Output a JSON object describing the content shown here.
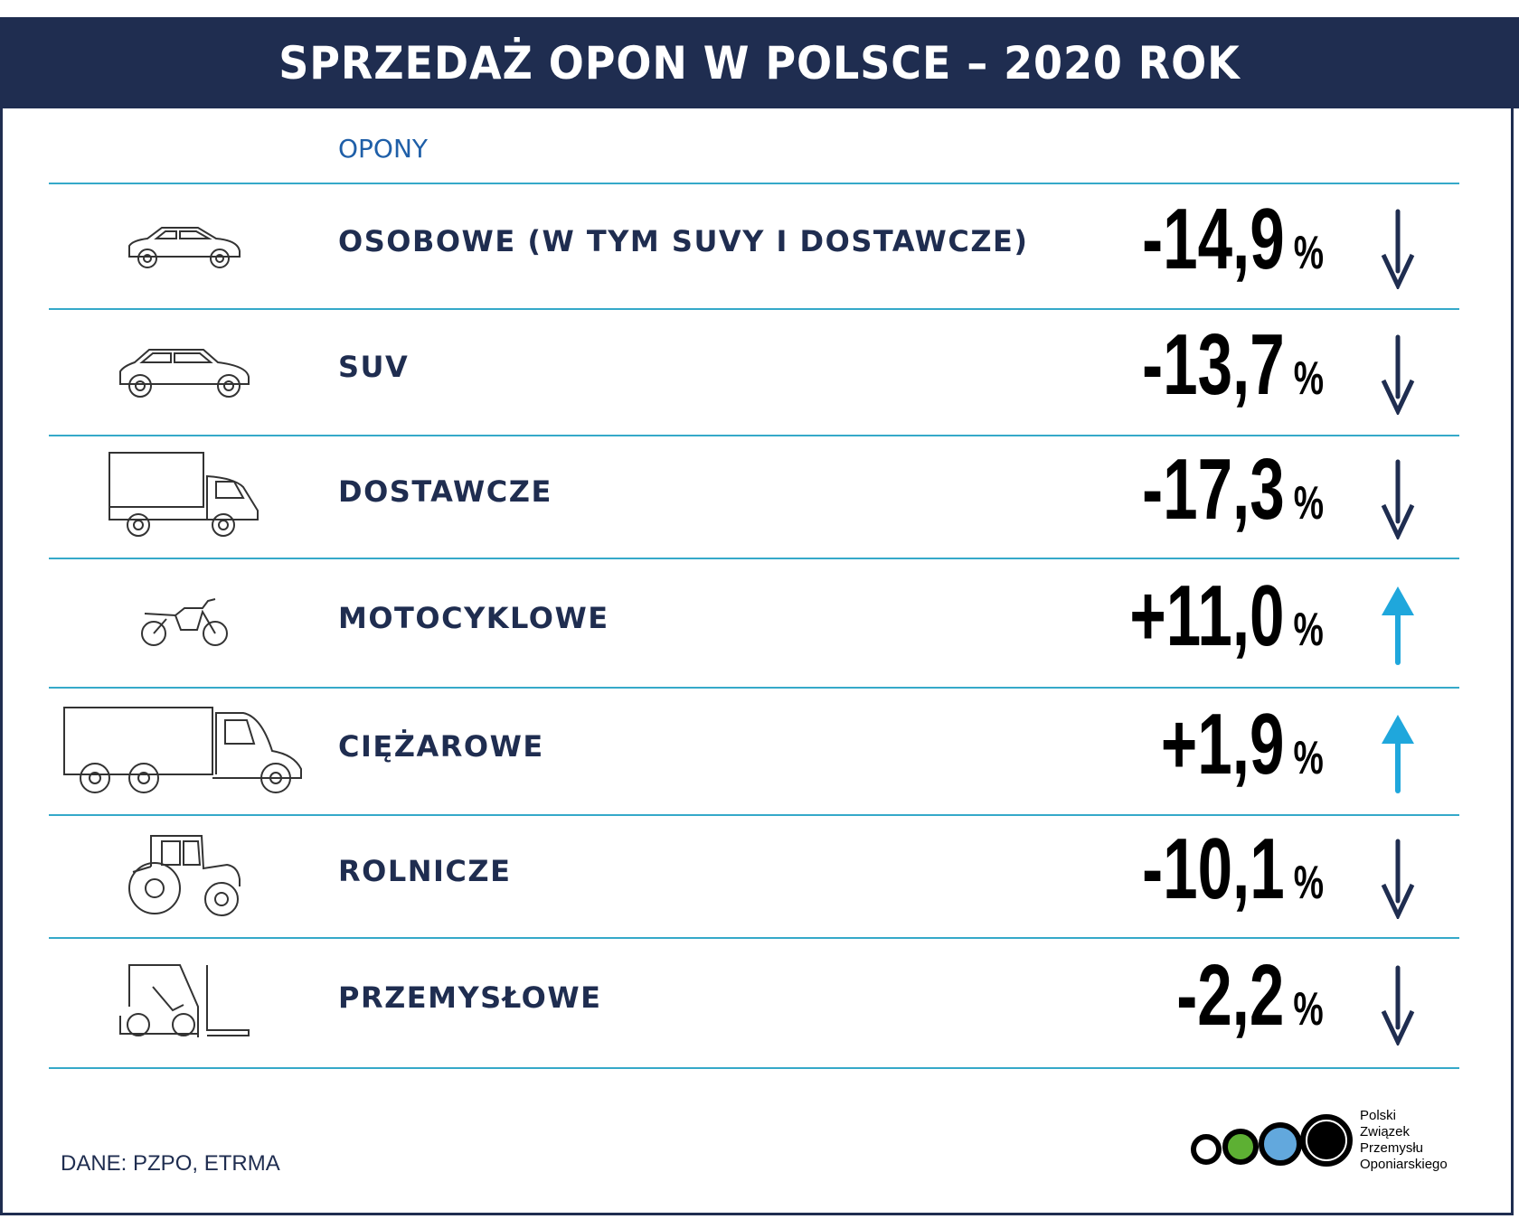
{
  "header": {
    "title": "SPRZEDAŻ OPON W POLSCE – 2020 ROK"
  },
  "column_header": "OPONY",
  "rows": [
    {
      "label": "OSOBOWE (W TYM SUVY I DOSTAWCZE)",
      "value": "-14,9",
      "unit": "%",
      "trend": "down",
      "icon": "car-icon"
    },
    {
      "label": "SUV",
      "value": "-13,7",
      "unit": "%",
      "trend": "down",
      "icon": "suv-icon"
    },
    {
      "label": "DOSTAWCZE",
      "value": "-17,3",
      "unit": "%",
      "trend": "down",
      "icon": "van-icon"
    },
    {
      "label": "MOTOCYKLOWE",
      "value": "+11,0",
      "unit": "%",
      "trend": "up",
      "icon": "motorcycle-icon"
    },
    {
      "label": "CIĘŻAROWE",
      "value": "+1,9",
      "unit": "%",
      "trend": "up",
      "icon": "truck-icon"
    },
    {
      "label": "ROLNICZE",
      "value": "-10,1",
      "unit": "%",
      "trend": "down",
      "icon": "tractor-icon"
    },
    {
      "label": "PRZEMYSŁOWE",
      "value": "-2,2",
      "unit": "%",
      "trend": "down",
      "icon": "forklift-icon"
    }
  ],
  "colors": {
    "navy": "#1f2d50",
    "line": "#35a9c9",
    "up": "#1fa7dc",
    "down": "#1f2d50",
    "heading": "#1f5fa8"
  },
  "source": "DANE: PZPO, ETRMA",
  "logo": {
    "lines": [
      "Polski",
      "Związek",
      "Przemysłu",
      "Oponiarskiego"
    ]
  }
}
